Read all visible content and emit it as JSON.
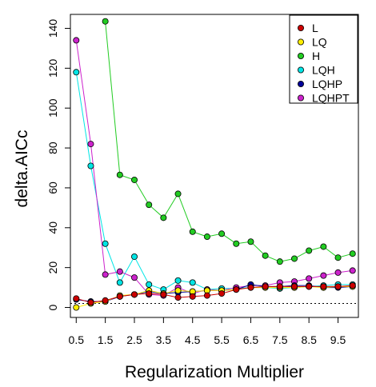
{
  "chart_data": {
    "type": "line",
    "xlabel": "Regularization Multiplier",
    "ylabel": "delta.AICc",
    "xlim": [
      0.3,
      10.2
    ],
    "ylim": [
      -5,
      147
    ],
    "x_ticks": [
      0.5,
      1.5,
      2.5,
      3.5,
      4.5,
      5.5,
      6.5,
      7.5,
      8.5,
      9.5
    ],
    "x_tick_labels": [
      "0.5",
      "1.5",
      "2.5",
      "3.5",
      "4.5",
      "5.5",
      "6.5",
      "7.5",
      "8.5",
      "9.5"
    ],
    "y_ticks": [
      0,
      20,
      40,
      60,
      80,
      100,
      120,
      140
    ],
    "y_tick_labels": [
      "0",
      "20",
      "40",
      "60",
      "80",
      "100",
      "120",
      "140"
    ],
    "reference_line_y": 2,
    "grid": false,
    "legend_position": "top-right",
    "x": [
      0.5,
      1,
      1.5,
      2,
      2.5,
      3,
      3.5,
      4,
      4.5,
      5,
      5.5,
      6,
      6.5,
      7,
      7.5,
      8,
      8.5,
      9,
      9.5,
      10
    ],
    "series": [
      {
        "name": "H",
        "color": "#22cc22",
        "start_index": 2,
        "values": [
          null,
          null,
          143.5,
          66.5,
          64,
          51.5,
          45,
          57,
          38,
          35.5,
          37,
          32,
          33,
          26,
          23,
          24.5,
          28.5,
          30.5,
          25,
          27
        ]
      },
      {
        "name": "LQH",
        "color": "#00e5e5",
        "start_index": 0,
        "values": [
          118,
          71,
          32,
          12.5,
          25.5,
          11.5,
          9,
          13.5,
          12.5,
          9,
          9.5,
          9.5,
          10,
          10,
          9.5,
          10,
          10.5,
          11,
          11.5,
          11.5
        ]
      },
      {
        "name": "LQHPT",
        "color": "#cc22cc",
        "start_index": 0,
        "values": [
          134,
          82,
          16.5,
          18,
          15,
          6.5,
          6,
          10,
          7,
          9,
          8.5,
          10,
          11,
          11,
          12.5,
          13,
          14.5,
          16,
          17.5,
          18.5
        ]
      },
      {
        "name": "LQHP",
        "color": "#000099",
        "start_index": 0,
        "values": [
          4,
          3,
          3,
          5.5,
          6.5,
          8,
          7,
          7.5,
          8,
          8.5,
          8.5,
          9,
          11.5,
          10.5,
          10.5,
          11,
          11,
          10,
          10,
          10.5
        ]
      },
      {
        "name": "LQ",
        "color": "#ffee00",
        "start_index": 0,
        "values": [
          0,
          2,
          3,
          6,
          6.5,
          8.5,
          7,
          8.5,
          8,
          8.5,
          8.5,
          9,
          10,
          10,
          10,
          10,
          10.5,
          10,
          10.5,
          10.5
        ]
      },
      {
        "name": "L",
        "color": "#cc0000",
        "start_index": 0,
        "values": [
          4.5,
          2.5,
          3.5,
          5.5,
          6.5,
          7,
          6.5,
          5,
          5.5,
          6,
          7,
          9,
          10,
          10.5,
          10.5,
          10.5,
          10.5,
          10.5,
          10.5,
          11
        ]
      }
    ],
    "legend": [
      {
        "name": "L",
        "color": "#cc0000"
      },
      {
        "name": "LQ",
        "color": "#ffee00"
      },
      {
        "name": "H",
        "color": "#22cc22"
      },
      {
        "name": "LQH",
        "color": "#00e5e5"
      },
      {
        "name": "LQHP",
        "color": "#000099"
      },
      {
        "name": "LQHPT",
        "color": "#cc22cc"
      }
    ]
  }
}
